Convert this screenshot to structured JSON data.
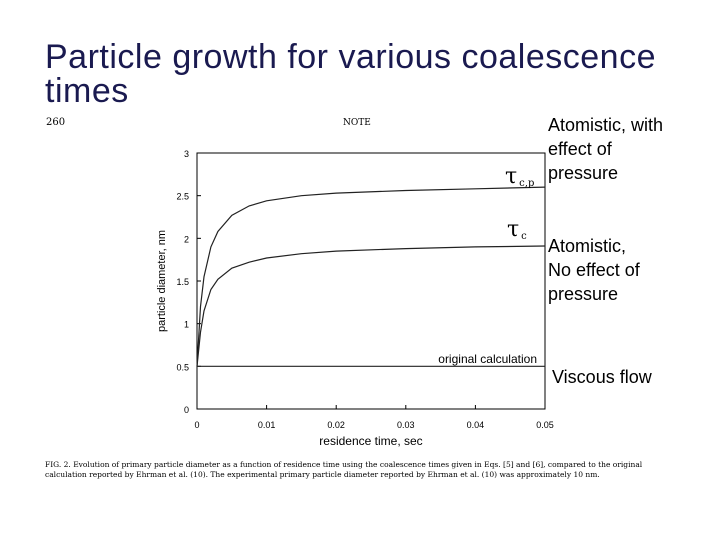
{
  "page": {
    "title": "Particle growth for various coalescence times",
    "page_number": "260",
    "note_header": "NOTE",
    "annotations": [
      {
        "lines": [
          "Atomistic, with",
          "effect of",
          "pressure"
        ]
      },
      {
        "lines": [
          "Atomistic,",
          "No effect of",
          "pressure"
        ]
      },
      {
        "lines": [
          "Viscous flow"
        ]
      }
    ],
    "caption": "FIG. 2.    Evolution of primary particle diameter as a function of residence time using the coalescence times given in Eqs. [5] and [6], compared to the original calculation reported by Ehrman et al. (10). The experimental primary particle diameter reported by Ehrman et al. (10) was approximately 10 nm."
  },
  "chart_data": {
    "type": "line",
    "xlabel": "residence time, sec",
    "ylabel": "particle diameter, nm",
    "xlim": [
      0,
      0.05
    ],
    "ylim": [
      0,
      3
    ],
    "xticks": [
      0,
      0.01,
      0.02,
      0.03,
      0.04,
      0.05
    ],
    "xtick_labels": [
      "0",
      "0.01",
      "0.02",
      "0.03",
      "0.04",
      "0.05"
    ],
    "yticks": [
      0,
      0.5,
      1,
      1.5,
      2,
      2.5,
      3
    ],
    "ytick_labels": [
      "0",
      "0.5",
      "1",
      "1.5",
      "2",
      "2.5",
      "3"
    ],
    "grid": false,
    "series": [
      {
        "label": "τ",
        "label_sub": "c,p",
        "x": [
          0,
          0.0005,
          0.001,
          0.002,
          0.003,
          0.005,
          0.0075,
          0.01,
          0.015,
          0.02,
          0.03,
          0.04,
          0.05
        ],
        "y": [
          0.5,
          1.2,
          1.55,
          1.9,
          2.08,
          2.27,
          2.38,
          2.44,
          2.5,
          2.53,
          2.56,
          2.58,
          2.6
        ]
      },
      {
        "label": "τ",
        "label_sub": "c",
        "x": [
          0,
          0.0005,
          0.001,
          0.002,
          0.003,
          0.005,
          0.0075,
          0.01,
          0.015,
          0.02,
          0.03,
          0.04,
          0.05
        ],
        "y": [
          0.5,
          0.9,
          1.15,
          1.4,
          1.52,
          1.65,
          1.72,
          1.77,
          1.82,
          1.85,
          1.88,
          1.9,
          1.91
        ]
      },
      {
        "label": "original calculation",
        "x": [
          0,
          0.05
        ],
        "y": [
          0.5,
          0.5
        ]
      }
    ]
  }
}
